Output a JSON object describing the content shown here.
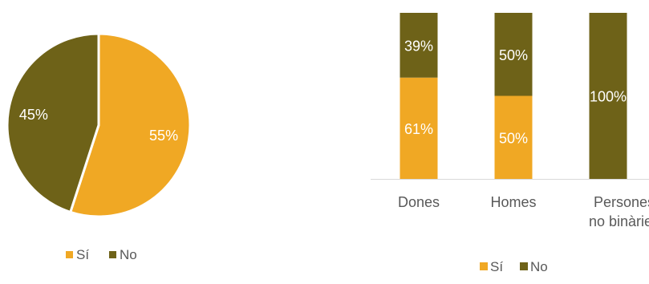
{
  "chart_data": [
    {
      "type": "pie",
      "categories": [
        "Sí",
        "No"
      ],
      "values": [
        55,
        45
      ],
      "labels": [
        "55%",
        "45%"
      ],
      "colors": [
        "#f0a824",
        "#6e6218"
      ],
      "legend": {
        "position": "bottom",
        "entries": [
          "Sí",
          "No"
        ]
      }
    },
    {
      "type": "bar",
      "stacked": true,
      "percent": true,
      "categories": [
        "Dones",
        "Homes",
        "Persones no binàries"
      ],
      "category_lines": [
        [
          "Dones"
        ],
        [
          "Homes"
        ],
        [
          "Persones",
          "no binàries"
        ]
      ],
      "series": [
        {
          "name": "Sí",
          "values": [
            61,
            50,
            0
          ],
          "labels": [
            "61%",
            "50%",
            ""
          ],
          "color": "#f0a824"
        },
        {
          "name": "No",
          "values": [
            39,
            50,
            100
          ],
          "labels": [
            "39%",
            "50%",
            "100%"
          ],
          "color": "#6e6218"
        }
      ],
      "ylim": [
        0,
        100
      ],
      "grid": false,
      "legend": {
        "position": "bottom",
        "entries": [
          "Sí",
          "No"
        ]
      }
    }
  ]
}
